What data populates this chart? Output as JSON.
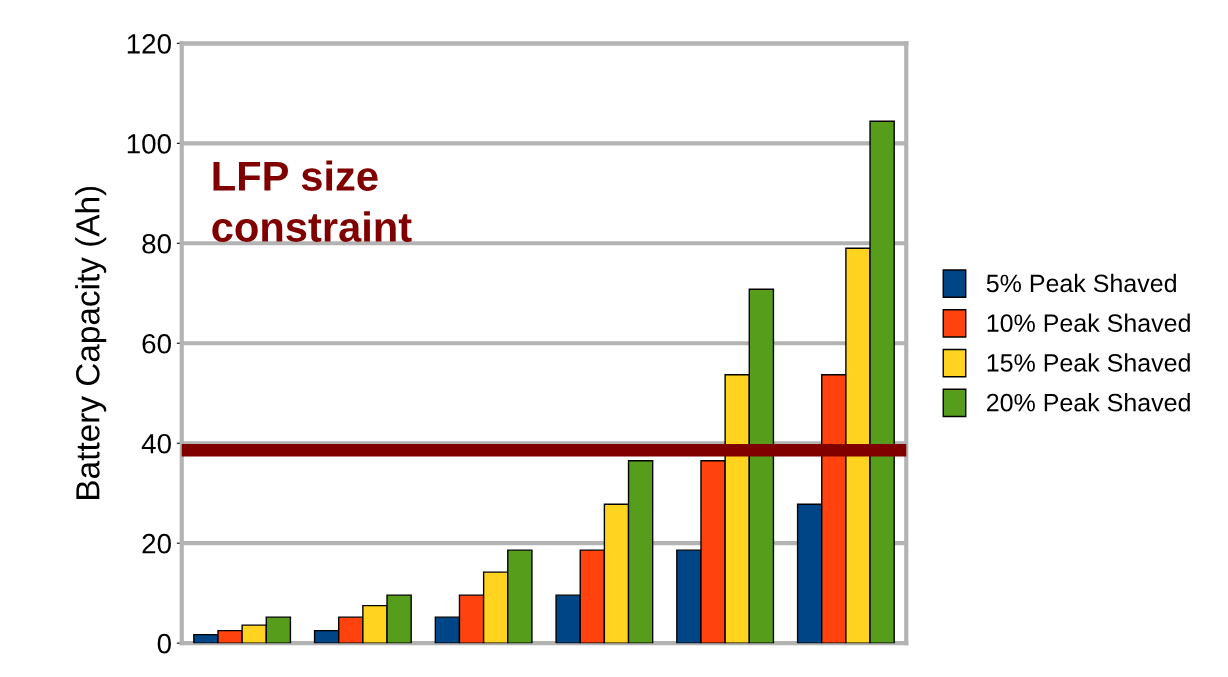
{
  "chart_data": {
    "type": "bar",
    "ylabel": "Battery Capacity (Ah)",
    "categories": [
      null,
      null,
      null,
      null,
      null,
      null
    ],
    "series": [
      {
        "name": "5% Peak Shaved",
        "color": "#004586",
        "values": [
          1.7,
          2.5,
          5.2,
          9.6,
          18.6,
          27.8
        ]
      },
      {
        "name": "10% Peak Shaved",
        "color": "#ff420e",
        "values": [
          2.5,
          5.2,
          9.6,
          18.6,
          36.5,
          53.7
        ]
      },
      {
        "name": "15% Peak Shaved",
        "color": "#ffd320",
        "values": [
          3.6,
          7.5,
          14.2,
          27.8,
          53.7,
          79
        ]
      },
      {
        "name": "20% Peak Shaved",
        "color": "#579d1c",
        "values": [
          5.2,
          9.6,
          18.6,
          36.5,
          70.8,
          104.4
        ]
      }
    ],
    "ylim": [
      0,
      120
    ],
    "yticks": [
      0,
      20,
      40,
      60,
      80,
      100,
      120
    ],
    "grid": "y",
    "legend": "right",
    "ref_lines": [
      {
        "axis": "y",
        "value": 38.6,
        "label": "LFP size\nconstraint",
        "color": "#800000"
      }
    ]
  }
}
